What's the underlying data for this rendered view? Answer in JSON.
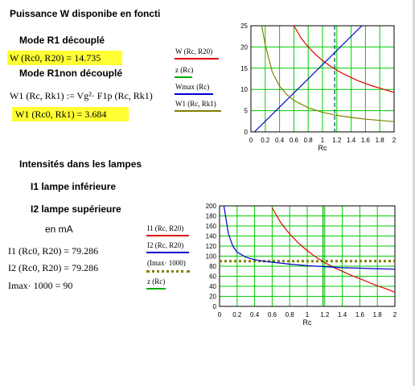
{
  "text": {
    "title": "Puissance W disponibe en foncti",
    "mode_r1_decouple": "Mode R1 découplé",
    "w_result": "W (Rc0, R20) = 14.735",
    "mode_r1_non_decouple": "Mode R1non découplé",
    "w1_def": "W1 (Rc, Rk1) := Vg²· F1p (Rc, Rk1)",
    "w1_result": "W1 (Rc0, Rk1) = 3.684",
    "intensites": "Intensités dans les lampes",
    "i1_label": "I1 lampe inférieure",
    "i2_label": "I2 lampe supérieure",
    "en_ma": "en mA",
    "i1_result": "I1 (Rc0, R20) = 79.286",
    "i2_result": "I2 (Rc0, R20) = 79.286",
    "imax_result": "Imax· 1000 = 90"
  },
  "chart_data": [
    {
      "type": "line",
      "xlabel": "Rc",
      "xlim": [
        0,
        2
      ],
      "ylim": [
        0,
        25
      ],
      "xticks": [
        "0",
        "0.2",
        "0.4",
        "0.6",
        "0.8",
        "1",
        "1.2",
        "1.4",
        "1.6",
        "1.8",
        "2"
      ],
      "yticks": [
        "0",
        "5",
        "10",
        "15",
        "20",
        "25"
      ],
      "vline": {
        "x": 1.17,
        "color": "#006060"
      },
      "legend": [
        {
          "name": "W (Rc, R20)",
          "color": "#dd0000"
        },
        {
          "name": "z (Rc)",
          "color": "#00aa00"
        },
        {
          "name": "Wmax (Rc)",
          "color": "#0000cc"
        },
        {
          "name": "W1 (Rc, Rk1)",
          "color": "#808000"
        }
      ],
      "series": [
        {
          "name": "W (Rc, R20)",
          "color": "#dd0000",
          "x": [
            0.6,
            0.7,
            0.8,
            0.9,
            1.0,
            1.1,
            1.2,
            1.3,
            1.4,
            1.5,
            1.6,
            1.7,
            1.8,
            1.9,
            2.0
          ],
          "y": [
            25,
            22.1,
            20.0,
            18.3,
            16.8,
            15.6,
            14.5,
            13.6,
            12.8,
            12.0,
            11.4,
            10.8,
            10.3,
            9.8,
            9.3
          ]
        },
        {
          "name": "Wmax (Rc)",
          "color": "#0000cc",
          "x": [
            0.05,
            1.55
          ],
          "y": [
            0,
            25
          ]
        },
        {
          "name": "W1 (Rc, Rk1)",
          "color": "#808000",
          "x": [
            0.15,
            0.2,
            0.3,
            0.4,
            0.5,
            0.6,
            0.8,
            1.0,
            1.2,
            1.4,
            1.6,
            1.8,
            2.0
          ],
          "y": [
            25,
            20.5,
            14.0,
            10.8,
            8.8,
            7.4,
            5.7,
            4.6,
            3.9,
            3.4,
            3.0,
            2.7,
            2.4
          ]
        }
      ]
    },
    {
      "type": "line",
      "xlabel": "Rc",
      "xlim": [
        0,
        2
      ],
      "ylim": [
        0,
        200
      ],
      "xticks": [
        "0",
        "0.2",
        "0.4",
        "0.6",
        "0.8",
        "1",
        "1.2",
        "1.4",
        "1.6",
        "1.8",
        "2"
      ],
      "yticks": [
        "0",
        "20",
        "40",
        "60",
        "80",
        "100",
        "120",
        "140",
        "160",
        "180",
        "200"
      ],
      "hline": {
        "y": 90,
        "color": "#808000"
      },
      "vline": {
        "x": 1.18,
        "color": "#00aa00"
      },
      "legend": [
        {
          "name": "I1 (Rc, R20)",
          "color": "#dd0000"
        },
        {
          "name": "I2 (Rc, R20)",
          "color": "#0000cc"
        },
        {
          "name": "(Imax· 1000)",
          "color": "#808000"
        },
        {
          "name": "z (Rc)",
          "color": "#00aa00"
        }
      ],
      "series": [
        {
          "name": "I1 (Rc, R20)",
          "color": "#dd0000",
          "x": [
            0.6,
            0.7,
            0.8,
            0.9,
            1.0,
            1.1,
            1.2,
            1.3,
            1.4,
            1.5,
            1.6,
            1.7,
            1.8,
            1.9,
            2.0
          ],
          "y": [
            196,
            166,
            144,
            126,
            111,
            98,
            87,
            78,
            70,
            62,
            55,
            48,
            41,
            35,
            28
          ]
        },
        {
          "name": "I2 (Rc, R20)",
          "color": "#0000cc",
          "x": [
            0.05,
            0.1,
            0.15,
            0.2,
            0.3,
            0.4,
            0.5,
            0.6,
            0.8,
            1.0,
            1.2,
            1.4,
            1.6,
            1.8,
            2.0
          ],
          "y": [
            200,
            145,
            120,
            108,
            98,
            93,
            90,
            88,
            84,
            81,
            79,
            77,
            76,
            75,
            74
          ]
        }
      ]
    }
  ]
}
